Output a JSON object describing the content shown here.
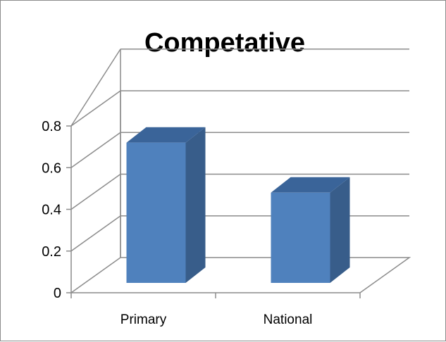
{
  "chart_data": {
    "type": "bar",
    "title": "Competative",
    "categories": [
      "Primary",
      "National"
    ],
    "values": [
      0.72,
      0.48
    ],
    "ylim": [
      0,
      0.8
    ],
    "yticks": [
      "0",
      "0.2",
      "0.4",
      "0.6",
      "0.8"
    ],
    "yticks_values": [
      0,
      0.2,
      0.4,
      0.6,
      0.8
    ],
    "grid": true,
    "legend": "none",
    "style": "3d-column",
    "bar_color": "#4f81bd",
    "bar_side_color": "#385d8a",
    "bar_top_color": "#3a6499"
  }
}
